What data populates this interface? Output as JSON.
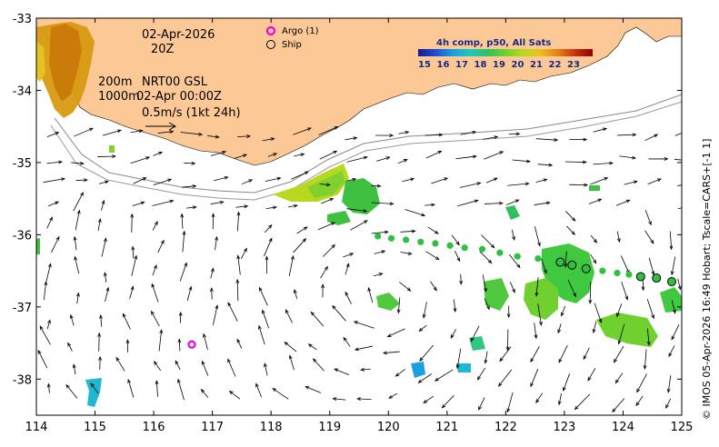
{
  "map": {
    "date": "02-Apr-2026",
    "time": "20Z",
    "depth_line1": "200m",
    "product_line1": "NRT00 GSL",
    "depth_line2": "1000m",
    "product_line2": "02-Apr 00:00Z",
    "vector_scale": "0.5m/s (1kt 24h)",
    "credit": "© IMOS 05-Apr-2026 16:49 Hobart; Tscale=CARS+[-1 1]",
    "lon_ticks": [
      "114",
      "115",
      "116",
      "117",
      "118",
      "119",
      "120",
      "121",
      "122",
      "123",
      "124",
      "125"
    ],
    "lat_ticks": [
      "-33",
      "-34",
      "-35",
      "-36",
      "-37",
      "-38"
    ],
    "lon_range": [
      114,
      125
    ],
    "lat_range": [
      -33,
      -38.5
    ]
  },
  "legend": {
    "argo_label": "Argo (1)",
    "ship_label": "Ship",
    "argo_color": "#ee00ee"
  },
  "colorbar": {
    "title": "4h comp, p50, All Sats",
    "ticks": [
      "15",
      "16",
      "17",
      "18",
      "19",
      "20",
      "21",
      "22",
      "23"
    ],
    "colors": [
      "#1a1a8c",
      "#1f4fd0",
      "#1aa0e0",
      "#20c8b8",
      "#30c060",
      "#70d030",
      "#b8d820",
      "#e8c020",
      "#e88018",
      "#c83010",
      "#8c0000"
    ]
  },
  "observations": {
    "argo": [
      {
        "lon": 116.65,
        "lat": -37.52
      }
    ],
    "ship": [
      {
        "lon": 122.93,
        "lat": -36.38
      },
      {
        "lon": 123.13,
        "lat": -36.42
      },
      {
        "lon": 123.37,
        "lat": -36.47
      },
      {
        "lon": 124.3,
        "lat": -36.58
      },
      {
        "lon": 124.57,
        "lat": -36.6
      },
      {
        "lon": 124.83,
        "lat": -36.65
      }
    ],
    "sst_track": [
      {
        "lon": 119.82,
        "lat": -36.02
      },
      {
        "lon": 120.05,
        "lat": -36.05
      },
      {
        "lon": 120.3,
        "lat": -36.07
      },
      {
        "lon": 120.55,
        "lat": -36.1
      },
      {
        "lon": 120.8,
        "lat": -36.12
      },
      {
        "lon": 121.05,
        "lat": -36.15
      },
      {
        "lon": 121.3,
        "lat": -36.18
      },
      {
        "lon": 121.6,
        "lat": -36.2
      },
      {
        "lon": 121.9,
        "lat": -36.25
      },
      {
        "lon": 122.2,
        "lat": -36.3
      },
      {
        "lon": 122.55,
        "lat": -36.33
      },
      {
        "lon": 123.65,
        "lat": -36.5
      },
      {
        "lon": 123.9,
        "lat": -36.53
      },
      {
        "lon": 124.1,
        "lat": -36.55
      }
    ]
  }
}
